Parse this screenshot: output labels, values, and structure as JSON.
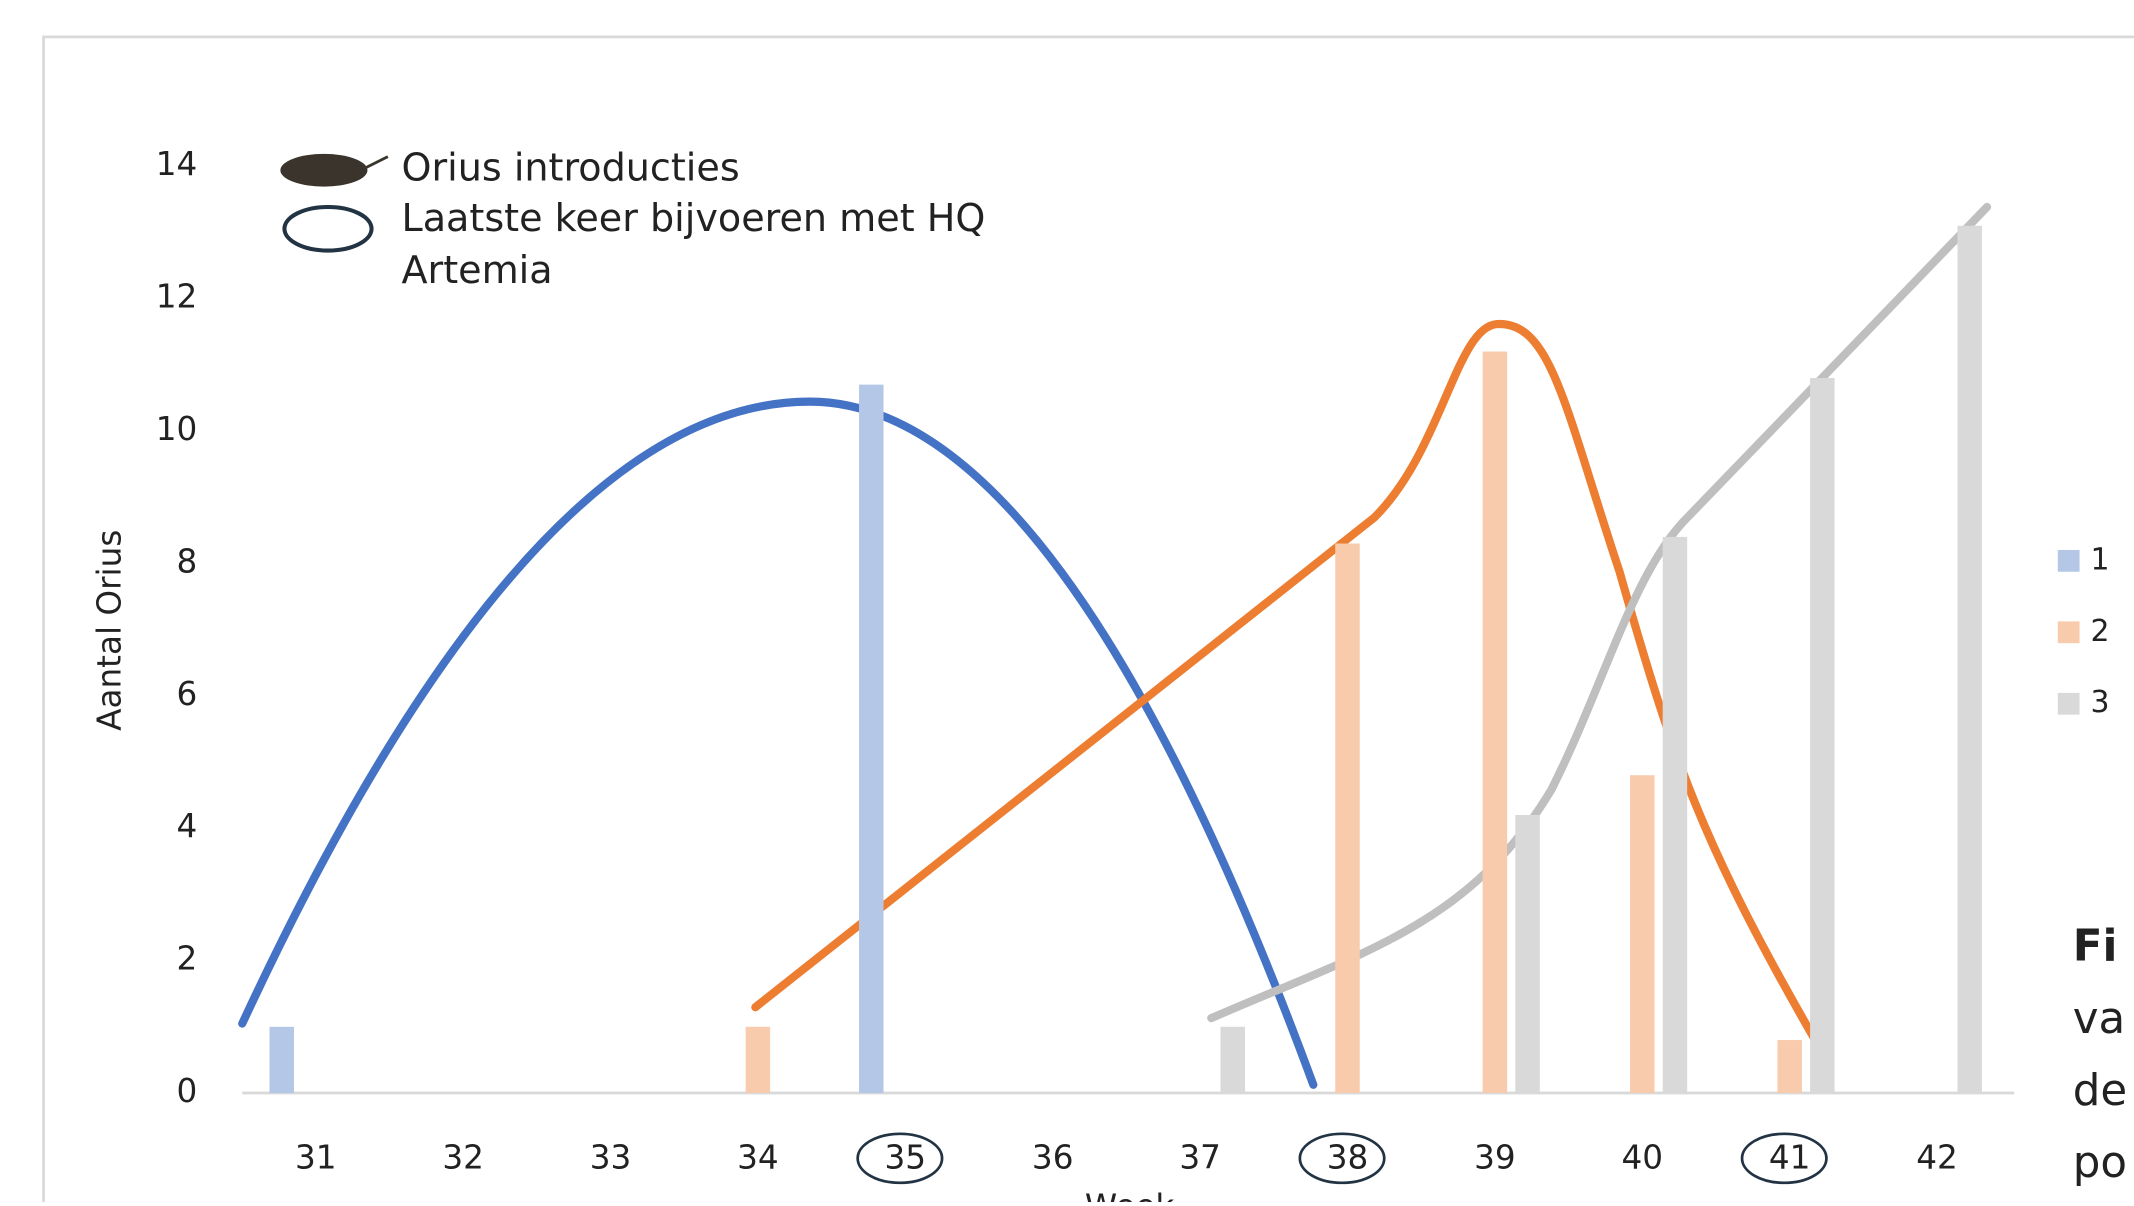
{
  "chart_data": {
    "type": "bar",
    "annotations": [
      "Orius introducties",
      "Laatste keer bijvoeren met HQ",
      "Artemia"
    ],
    "y_label": "Aantal Orius",
    "x_label": "Week",
    "categories": [
      "31",
      "32",
      "33",
      "34",
      "35",
      "36",
      "37",
      "38",
      "39",
      "40",
      "41",
      "42"
    ],
    "series": [
      {
        "name": "1",
        "color": "#b4c7e7",
        "values": [
          1,
          null,
          null,
          null,
          10.7,
          null,
          null,
          null,
          null,
          null,
          null,
          null
        ]
      },
      {
        "name": "2",
        "color": "#f8cbad",
        "values": [
          null,
          null,
          null,
          1,
          null,
          null,
          null,
          8.3,
          11.2,
          4.8,
          0.8,
          null
        ]
      },
      {
        "name": "3",
        "color": "#d9d9d9",
        "values": [
          null,
          null,
          null,
          null,
          null,
          null,
          1,
          null,
          4.2,
          8.4,
          10.8,
          13.1
        ]
      }
    ],
    "ylim": [
      0,
      14
    ],
    "yticks": [
      0,
      2,
      4,
      6,
      8,
      10,
      12,
      14
    ],
    "caption_fragments": [
      "Fi",
      "va",
      "de",
      "po"
    ]
  }
}
